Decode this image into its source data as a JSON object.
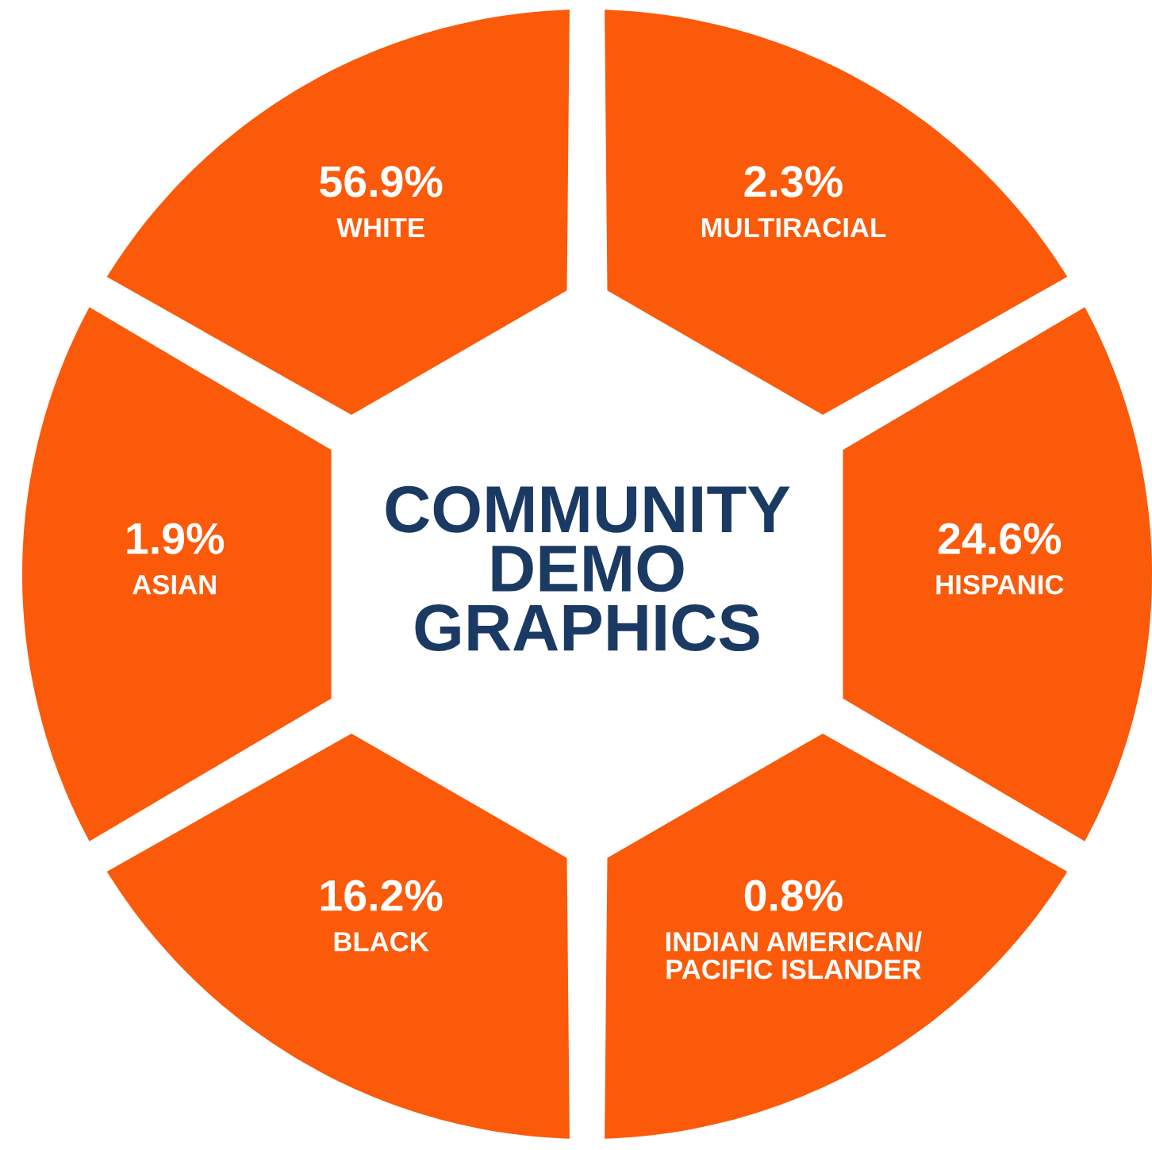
{
  "chart_data": {
    "type": "other",
    "title": "COMMUNITY\nDEMO\nGRAPHICS",
    "categories": [
      "WHITE",
      "MULTIRACIAL",
      "HISPANIC",
      "INDIAN AMERICAN/\nPACIFIC ISLANDER",
      "BLACK",
      "ASIAN"
    ],
    "values": [
      56.9,
      2.3,
      24.6,
      0.8,
      16.2,
      1.9
    ],
    "value_labels": [
      "56.9%",
      "2.3%",
      "24.6%",
      "0.8%",
      "16.2%",
      "1.9%"
    ],
    "colors": [
      "#fa5a0a",
      "#fa5a0a",
      "#fa5a0a",
      "#fa5a0a",
      "#fa5a0a",
      "#fa5a0a"
    ]
  }
}
